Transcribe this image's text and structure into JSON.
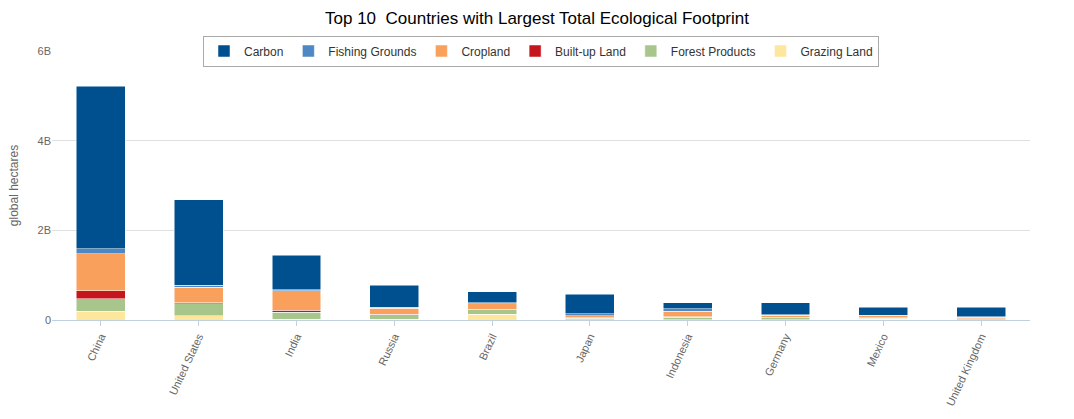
{
  "chart_data": {
    "type": "bar",
    "stacked": true,
    "title": "Top 10  Countries with Largest Total Ecological Footprint",
    "y_label": "global hectares",
    "categories": [
      "China",
      "United States",
      "India",
      "Russia",
      "Brazil",
      "Japan",
      "Indonesia",
      "Germany",
      "Mexico",
      "United Kingdom"
    ],
    "series": [
      {
        "name": "Carbon",
        "color": "#00508f",
        "values": [
          3620000000,
          1900000000,
          760000000,
          490000000,
          250000000,
          440000000,
          130000000,
          260000000,
          180000000,
          220000000
        ]
      },
      {
        "name": "Fishing Grounds",
        "color": "#4d88c5",
        "values": [
          110000000,
          50000000,
          30000000,
          30000000,
          20000000,
          50000000,
          60000000,
          10000000,
          10000000,
          10000000
        ]
      },
      {
        "name": "Cropland",
        "color": "#f9a15c",
        "values": [
          830000000,
          340000000,
          430000000,
          130000000,
          120000000,
          40000000,
          120000000,
          50000000,
          50000000,
          30000000
        ]
      },
      {
        "name": "Built-up Land",
        "color": "#c4161c",
        "values": [
          180000000,
          30000000,
          50000000,
          10000000,
          10000000,
          10000000,
          10000000,
          10000000,
          10000000,
          0
        ]
      },
      {
        "name": "Forest Products",
        "color": "#a8c68c",
        "values": [
          270000000,
          270000000,
          150000000,
          100000000,
          100000000,
          30000000,
          50000000,
          40000000,
          20000000,
          20000000
        ]
      },
      {
        "name": "Grazing Land",
        "color": "#fde79c",
        "values": [
          200000000,
          90000000,
          20000000,
          20000000,
          130000000,
          10000000,
          10000000,
          10000000,
          20000000,
          10000000
        ]
      }
    ],
    "ylim": [
      0,
      6000000000
    ],
    "yticks": [
      0,
      {
        "value": 2000000000,
        "label": "2B"
      },
      {
        "value": 4000000000,
        "label": "4B"
      },
      {
        "value": 6000000000,
        "label": "6B"
      }
    ],
    "grid": true,
    "legend": "top"
  }
}
